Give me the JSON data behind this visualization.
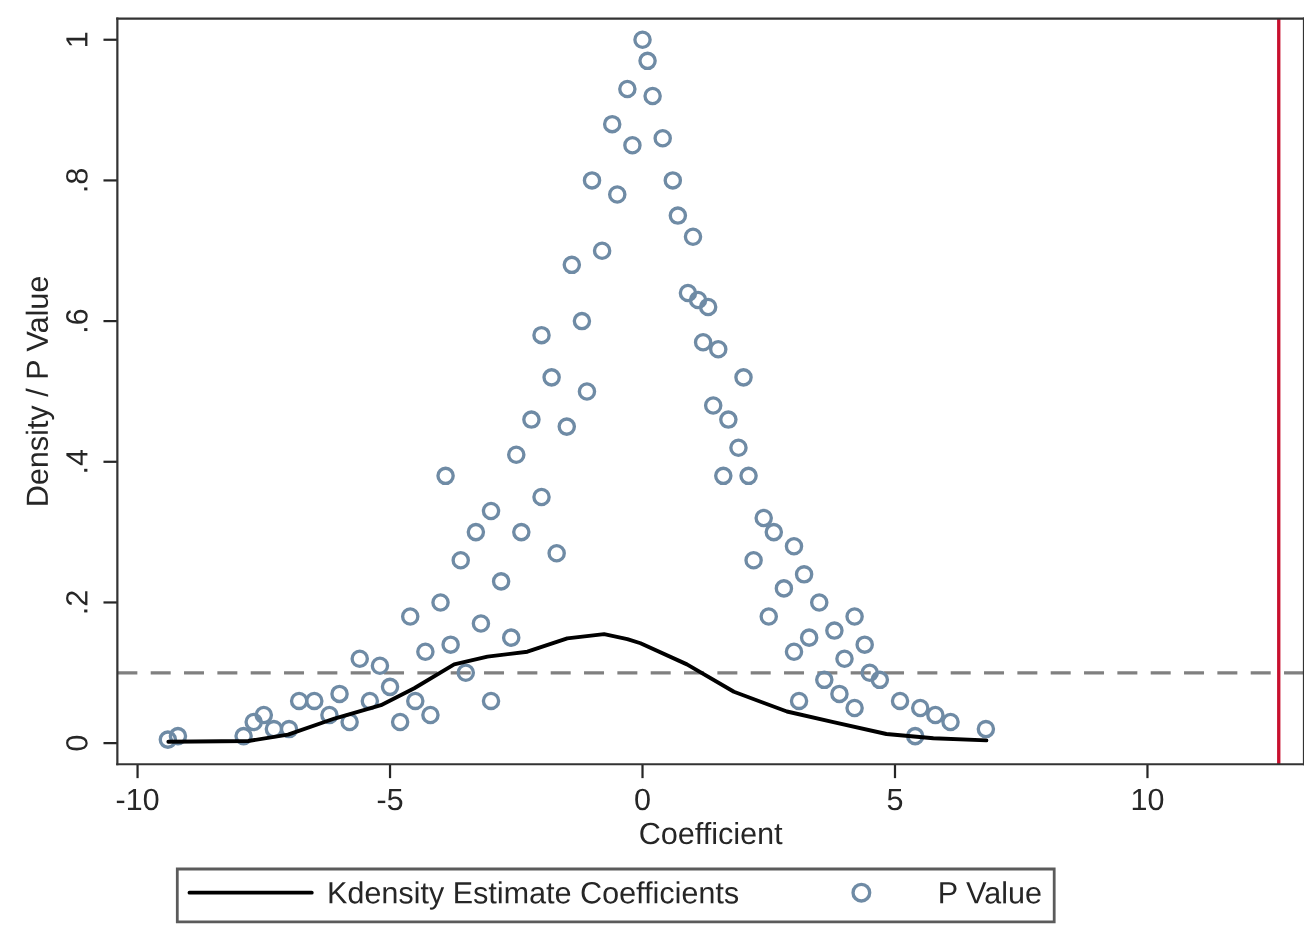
{
  "chart_data": {
    "type": "scatter",
    "xlabel": "Coefficient",
    "ylabel": "Density / P Value",
    "xlim": [
      -10.4,
      13.1
    ],
    "ylim": [
      -0.03,
      1.03
    ],
    "xticks": [
      -10,
      -5,
      0,
      5,
      10
    ],
    "yticks": [
      0,
      {
        "value": 0.2,
        "label": ".2"
      },
      {
        "value": 0.4,
        "label": ".4"
      },
      {
        "value": 0.6,
        "label": ".6"
      },
      {
        "value": 0.8,
        "label": ".8"
      },
      1
    ],
    "grid": false,
    "legend": "bottom",
    "ref_lines": [
      {
        "axis": "y",
        "value": 0.1,
        "color": "#808080",
        "line_style": "dashed"
      },
      {
        "axis": "x",
        "value": 12.6,
        "color": "#c8102e",
        "line_style": "solid"
      }
    ],
    "series": [
      {
        "name": "Kdensity Estimate Coefficients",
        "type": "line",
        "color": "#000000",
        "marker": "none",
        "line_style": "solid",
        "x": [
          -9.39,
          -7.81,
          -7.02,
          -6.1,
          -5.18,
          -4.52,
          -3.73,
          -3.07,
          -2.28,
          -1.49,
          -0.76,
          -0.3,
          -0.04,
          0.88,
          1.81,
          2.86,
          3.78,
          4.83,
          5.76,
          6.81
        ],
        "values": [
          0.002,
          0.003,
          0.012,
          0.035,
          0.054,
          0.078,
          0.112,
          0.123,
          0.13,
          0.149,
          0.155,
          0.148,
          0.142,
          0.112,
          0.073,
          0.045,
          0.03,
          0.013,
          0.007,
          0.004
        ]
      },
      {
        "name": "P Value",
        "color": "#6f8ba5",
        "marker": "circle",
        "x": [
          -9.4,
          -9.2,
          -7.9,
          -7.7,
          -7.5,
          -7.3,
          -7.0,
          -6.8,
          -6.5,
          -6.2,
          -6.0,
          -5.8,
          -5.6,
          -5.4,
          -5.2,
          -5.0,
          -4.8,
          -4.6,
          -4.5,
          -4.3,
          -4.2,
          -4.0,
          -3.9,
          -3.8,
          -3.6,
          -3.5,
          -3.3,
          -3.2,
          -3.0,
          -3.0,
          -2.8,
          -2.6,
          -2.5,
          -2.4,
          -2.2,
          -2.0,
          -2.0,
          -1.8,
          -1.7,
          -1.5,
          -1.4,
          -1.2,
          -1.0,
          -1.1,
          -0.8,
          -0.6,
          -0.5,
          -0.3,
          -0.2,
          0.0,
          0.1,
          0.2,
          0.4,
          0.6,
          0.7,
          1.0,
          0.9,
          1.1,
          1.3,
          1.2,
          1.5,
          1.4,
          1.7,
          2.0,
          1.9,
          2.1,
          1.6,
          2.4,
          2.6,
          2.2,
          3.0,
          2.8,
          2.5,
          3.2,
          3.5,
          3.3,
          3.8,
          4.0,
          4.2,
          4.4,
          3.9,
          4.5,
          4.7,
          4.2,
          3.6,
          3.0,
          3.1,
          5.1,
          5.5,
          5.8,
          6.1,
          6.8,
          5.4
        ],
        "values": [
          0.005,
          0.01,
          0.01,
          0.03,
          0.04,
          0.02,
          0.02,
          0.06,
          0.06,
          0.04,
          0.07,
          0.03,
          0.12,
          0.06,
          0.11,
          0.08,
          0.03,
          0.18,
          0.06,
          0.13,
          0.04,
          0.2,
          0.38,
          0.14,
          0.26,
          0.1,
          0.3,
          0.17,
          0.06,
          0.33,
          0.23,
          0.15,
          0.41,
          0.3,
          0.46,
          0.35,
          0.58,
          0.52,
          0.27,
          0.45,
          0.68,
          0.6,
          0.8,
          0.5,
          0.7,
          0.88,
          0.78,
          0.93,
          0.85,
          1.0,
          0.97,
          0.92,
          0.86,
          0.8,
          0.75,
          0.72,
          0.64,
          0.63,
          0.62,
          0.57,
          0.56,
          0.48,
          0.46,
          0.52,
          0.42,
          0.38,
          0.38,
          0.32,
          0.3,
          0.26,
          0.28,
          0.22,
          0.18,
          0.24,
          0.2,
          0.15,
          0.16,
          0.12,
          0.18,
          0.14,
          0.07,
          0.1,
          0.09,
          0.05,
          0.09,
          0.13,
          0.06,
          0.06,
          0.05,
          0.04,
          0.03,
          0.02,
          0.01
        ]
      }
    ]
  }
}
